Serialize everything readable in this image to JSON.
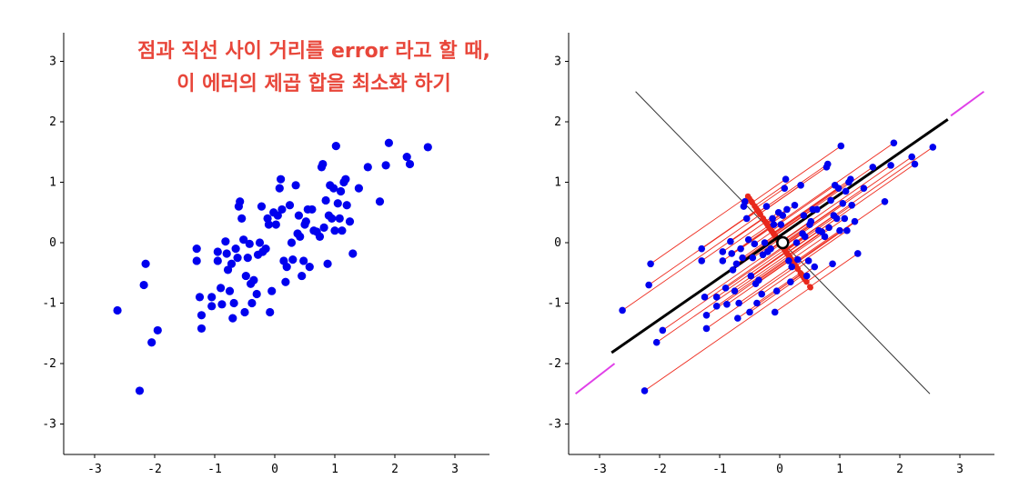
{
  "annotation": {
    "line1": "점과 직선 사이 거리를 error 라고 할 때,",
    "line2": "이 에러의 제곱 합을 최소화 하기"
  },
  "colors": {
    "points": "#0000ee",
    "fit_line": "#000000",
    "projection_lines": "#ee2b1e",
    "projected_points": "#e8281c",
    "orthogonal_axis": "#333333",
    "extension": "#e040e8",
    "annotation": "#e8463a"
  },
  "chart_data": [
    {
      "type": "scatter",
      "title": "",
      "xlabel": "",
      "ylabel": "",
      "xlim": [
        -3.4,
        3.4
      ],
      "ylim": [
        -3.5,
        3.5
      ],
      "xticks": [
        "-3",
        "-2",
        "-1",
        "0",
        "1",
        "2",
        "3"
      ],
      "yticks": [
        "3",
        "2",
        "1",
        "0",
        "-1",
        "-2",
        "-3"
      ],
      "grid": false,
      "points": [
        [
          -2.62,
          -1.12
        ],
        [
          -2.25,
          -2.45
        ],
        [
          -2.18,
          -0.7
        ],
        [
          -2.15,
          -0.35
        ],
        [
          -2.05,
          -1.65
        ],
        [
          -1.95,
          -1.45
        ],
        [
          -1.3,
          -0.1
        ],
        [
          -1.3,
          -0.3
        ],
        [
          -1.25,
          -0.9
        ],
        [
          -1.22,
          -1.2
        ],
        [
          -1.22,
          -1.42
        ],
        [
          -1.05,
          -0.9
        ],
        [
          -1.05,
          -1.05
        ],
        [
          -0.95,
          -0.15
        ],
        [
          -0.95,
          -0.3
        ],
        [
          -0.9,
          -0.75
        ],
        [
          -0.88,
          -1.02
        ],
        [
          -0.82,
          0.02
        ],
        [
          -0.8,
          -0.18
        ],
        [
          -0.78,
          -0.45
        ],
        [
          -0.75,
          -0.8
        ],
        [
          -0.72,
          -0.35
        ],
        [
          -0.7,
          -1.25
        ],
        [
          -0.68,
          -1.0
        ],
        [
          -0.65,
          -0.1
        ],
        [
          -0.62,
          -0.25
        ],
        [
          -0.6,
          0.6
        ],
        [
          -0.58,
          0.68
        ],
        [
          -0.55,
          0.4
        ],
        [
          -0.52,
          0.05
        ],
        [
          -0.5,
          -1.15
        ],
        [
          -0.48,
          -0.55
        ],
        [
          -0.45,
          -0.25
        ],
        [
          -0.42,
          -0.02
        ],
        [
          -0.4,
          -0.68
        ],
        [
          -0.38,
          -1.0
        ],
        [
          -0.35,
          -0.62
        ],
        [
          -0.3,
          -0.85
        ],
        [
          -0.28,
          -0.2
        ],
        [
          -0.25,
          0.0
        ],
        [
          -0.22,
          0.6
        ],
        [
          -0.2,
          -0.15
        ],
        [
          -0.15,
          -0.1
        ],
        [
          -0.12,
          0.4
        ],
        [
          -0.1,
          0.3
        ],
        [
          -0.08,
          -1.15
        ],
        [
          -0.05,
          -0.8
        ],
        [
          -0.02,
          0.5
        ],
        [
          0.02,
          0.3
        ],
        [
          0.05,
          0.45
        ],
        [
          0.08,
          0.9
        ],
        [
          0.1,
          1.05
        ],
        [
          0.12,
          0.55
        ],
        [
          0.15,
          -0.3
        ],
        [
          0.18,
          -0.65
        ],
        [
          0.2,
          -0.4
        ],
        [
          0.25,
          0.62
        ],
        [
          0.28,
          0.0
        ],
        [
          0.3,
          -0.28
        ],
        [
          0.35,
          0.95
        ],
        [
          0.38,
          0.15
        ],
        [
          0.4,
          0.45
        ],
        [
          0.42,
          0.1
        ],
        [
          0.45,
          -0.55
        ],
        [
          0.48,
          -0.3
        ],
        [
          0.5,
          0.3
        ],
        [
          0.52,
          0.35
        ],
        [
          0.55,
          0.55
        ],
        [
          0.58,
          -0.4
        ],
        [
          0.62,
          0.55
        ],
        [
          0.65,
          0.2
        ],
        [
          0.7,
          0.18
        ],
        [
          0.75,
          0.1
        ],
        [
          0.78,
          1.25
        ],
        [
          0.8,
          1.3
        ],
        [
          0.82,
          0.25
        ],
        [
          0.85,
          0.7
        ],
        [
          0.88,
          -0.35
        ],
        [
          0.9,
          0.45
        ],
        [
          0.92,
          0.95
        ],
        [
          0.95,
          0.4
        ],
        [
          0.98,
          0.9
        ],
        [
          1.0,
          0.2
        ],
        [
          1.02,
          1.6
        ],
        [
          1.05,
          0.65
        ],
        [
          1.08,
          0.4
        ],
        [
          1.1,
          0.85
        ],
        [
          1.12,
          0.2
        ],
        [
          1.15,
          1.0
        ],
        [
          1.18,
          1.05
        ],
        [
          1.2,
          0.62
        ],
        [
          1.25,
          0.35
        ],
        [
          1.3,
          -0.18
        ],
        [
          1.4,
          0.9
        ],
        [
          1.55,
          1.25
        ],
        [
          1.75,
          0.68
        ],
        [
          1.85,
          1.28
        ],
        [
          1.9,
          1.65
        ],
        [
          2.2,
          1.42
        ],
        [
          2.25,
          1.3
        ],
        [
          2.55,
          1.58
        ]
      ]
    },
    {
      "type": "scatter",
      "title": "",
      "xlabel": "",
      "ylabel": "",
      "xlim": [
        -3.4,
        3.4
      ],
      "ylim": [
        -3.5,
        3.5
      ],
      "xticks": [
        "-3",
        "-2",
        "-1",
        "0",
        "1",
        "2",
        "3"
      ],
      "yticks": [
        "3",
        "2",
        "1",
        "0",
        "-1",
        "-2",
        "-3"
      ],
      "grid": false,
      "fit_line": {
        "from": [
          -2.8,
          -1.82
        ],
        "to": [
          2.8,
          2.04
        ],
        "slope": 0.69
      },
      "orthogonal_axis": {
        "from": [
          -2.4,
          2.5
        ],
        "to": [
          2.5,
          -2.5
        ]
      },
      "extension_segments": [
        [
          [
            -3.4,
            -2.5
          ],
          [
            -2.75,
            -2.0
          ]
        ],
        [
          [
            2.85,
            2.1
          ],
          [
            3.4,
            2.5
          ]
        ]
      ],
      "mean_marker": [
        0.05,
        0.0
      ],
      "note": "projections of the same points onto the orthogonal axis"
    }
  ]
}
